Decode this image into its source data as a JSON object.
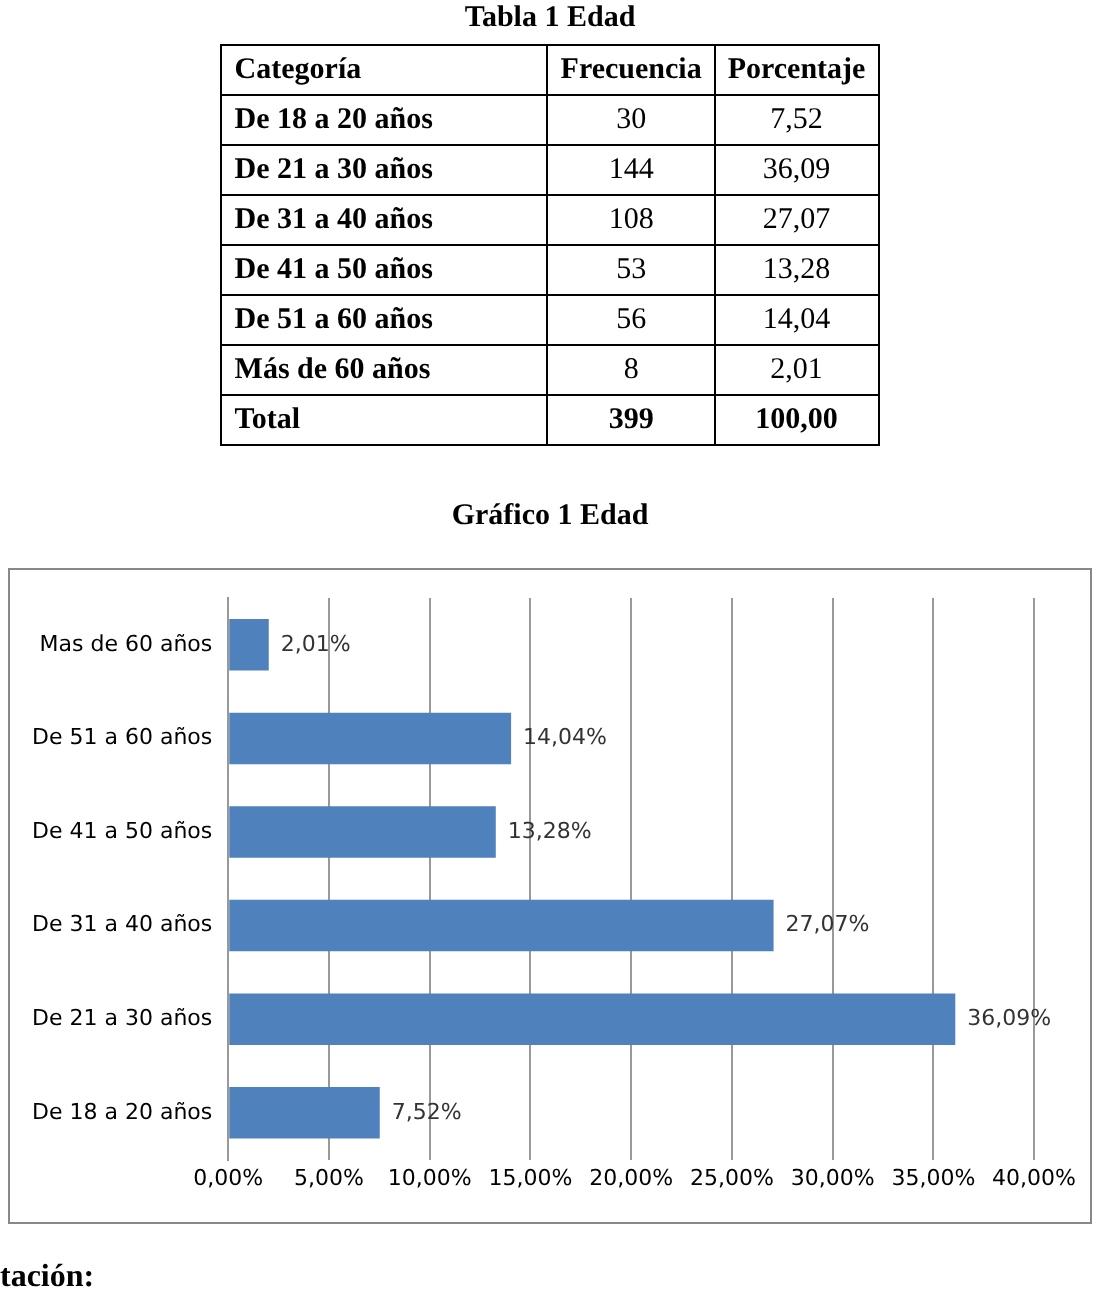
{
  "chart_data": [
    {
      "type": "other",
      "title": "Tabla  1 Edad",
      "annotations": [
        "Categoría",
        "Frecuencia",
        "Porcentaje",
        "De 18 a 20 años",
        "30",
        "7,52",
        "De 21 a 30 años",
        "144",
        "36,09",
        "De 31 a 40 años",
        "108",
        "27,07",
        "De 41 a 50 años",
        "53",
        "13,28",
        "De 51 a 60 años",
        "56",
        "14,04",
        "Más de 60 años",
        "8",
        "2,01",
        "Total",
        "399",
        "100,00"
      ]
    },
    {
      "type": "bar",
      "orientation": "horizontal",
      "title": "Gráfico  1 Edad",
      "categories": [
        "Mas de 60 años",
        "De 51 a 60 años",
        "De 41 a 50 años",
        "De 31 a 40 años",
        "De 21 a 30 años",
        "De 18 a 20 años"
      ],
      "values": [
        2.01,
        14.04,
        13.28,
        27.07,
        36.09,
        7.52
      ],
      "value_labels": [
        "2,01%",
        "14,04%",
        "13,28%",
        "27,07%",
        "36,09%",
        "7,52%"
      ],
      "color": "#4f81bd",
      "xlim": [
        0,
        40
      ],
      "xticks": [
        {
          "value": 0,
          "label": "0,00%"
        },
        {
          "value": 5,
          "label": "5,00%"
        },
        {
          "value": 10,
          "label": "10,00%"
        },
        {
          "value": 15,
          "label": "15,00%"
        },
        {
          "value": 20,
          "label": "20,00%"
        },
        {
          "value": 25,
          "label": "25,00%"
        },
        {
          "value": 30,
          "label": "30,00%"
        },
        {
          "value": 35,
          "label": "35,00%"
        },
        {
          "value": 40,
          "label": "40,00%"
        }
      ],
      "grid": "x",
      "legend": false,
      "annotations": [
        "tación:"
      ]
    }
  ]
}
